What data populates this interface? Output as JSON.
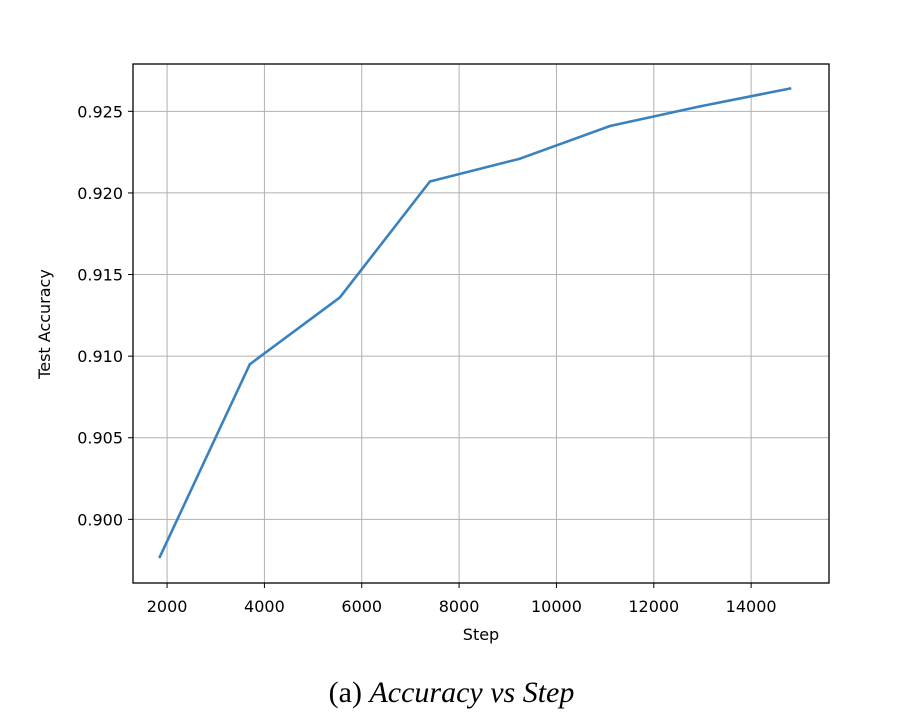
{
  "chart_data": {
    "type": "line",
    "xlabel": "Step",
    "ylabel": "Test Accuracy",
    "xlim": [
      1300,
      15600
    ],
    "ylim": [
      0.8961,
      0.9279
    ],
    "xticks": [
      2000,
      4000,
      6000,
      8000,
      10000,
      12000,
      14000
    ],
    "yticks": [
      0.9,
      0.905,
      0.91,
      0.915,
      0.92,
      0.925
    ],
    "xtick_labels": [
      "2000",
      "4000",
      "6000",
      "8000",
      "10000",
      "12000",
      "14000"
    ],
    "ytick_labels": [
      "0.900",
      "0.905",
      "0.910",
      "0.915",
      "0.920",
      "0.925"
    ],
    "grid": true,
    "series": [
      {
        "color": "#3a82be",
        "x": [
          1850,
          3700,
          5550,
          7400,
          9250,
          11100,
          12950,
          14800
        ],
        "y": [
          0.8977,
          0.9095,
          0.9136,
          0.9207,
          0.9221,
          0.9241,
          0.9253,
          0.9264
        ]
      }
    ]
  },
  "caption": {
    "prefix": "(a) ",
    "title": "Accuracy vs Step"
  }
}
